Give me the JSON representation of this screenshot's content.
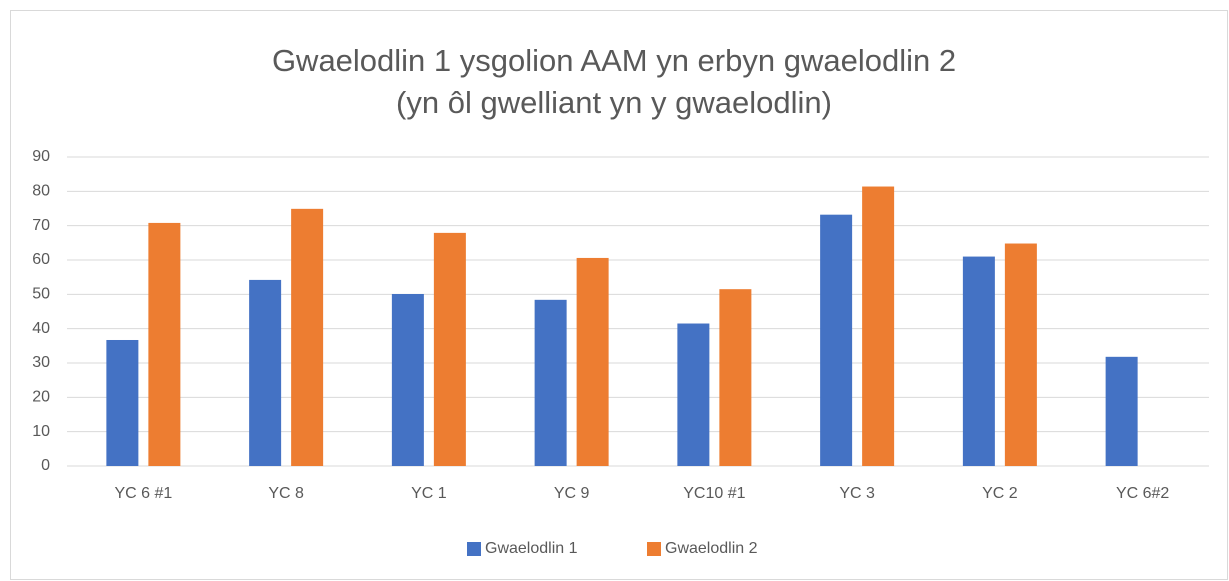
{
  "chart_data": {
    "type": "bar",
    "title": [
      "Gwaelodlin 1 ysgolion AAM yn erbyn gwaelodlin 2",
      "(yn ôl gwelliant yn y gwaelodlin)"
    ],
    "categories": [
      "YC 6 #1",
      "YC 8",
      "YC 1",
      "YC 9",
      "YC10 #1",
      "YC 3",
      "YC 2",
      "YC 6#2"
    ],
    "series": [
      {
        "name": "Gwaelodlin 1",
        "color": "#4472c4",
        "values": [
          36.7,
          54.2,
          50.1,
          48.4,
          41.5,
          73.2,
          61,
          31.8
        ]
      },
      {
        "name": "Gwaelodlin 2",
        "color": "#ed7d31",
        "values": [
          70.8,
          74.9,
          67.9,
          60.6,
          51.5,
          81.4,
          64.8,
          null
        ]
      }
    ],
    "ylim": [
      0,
      90
    ],
    "yticks": [
      0,
      10,
      20,
      30,
      40,
      50,
      60,
      70,
      80,
      90
    ],
    "grid": true,
    "legend": "bottom"
  }
}
